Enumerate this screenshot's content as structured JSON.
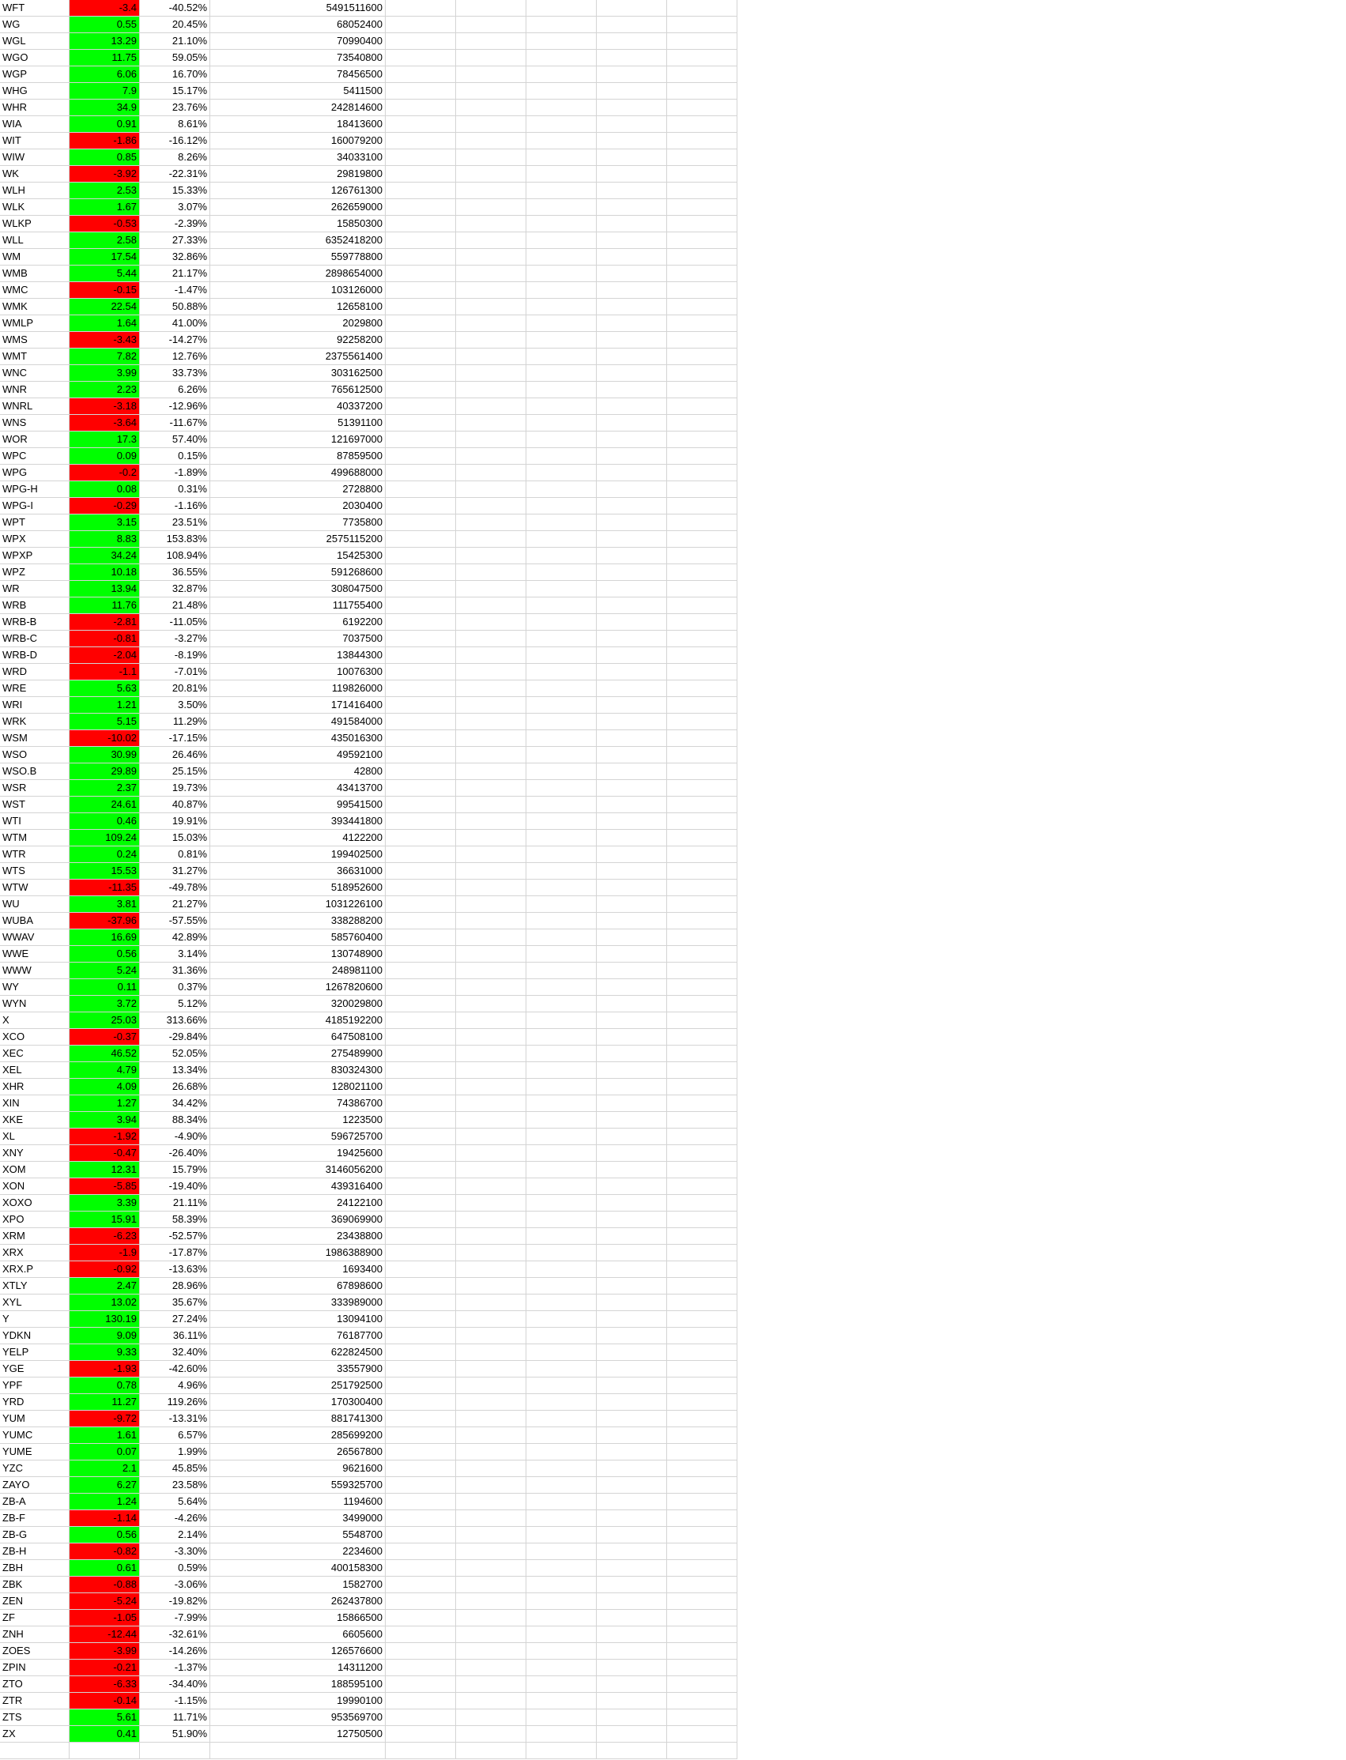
{
  "colors": {
    "positive_fill": "#00ff00",
    "negative_fill": "#ff0000",
    "gridline": "#d4d4d4"
  },
  "rows": [
    [
      "WFT",
      "-3.4",
      "-40.52%",
      "5491511600"
    ],
    [
      "WG",
      "0.55",
      "20.45%",
      "68052400"
    ],
    [
      "WGL",
      "13.29",
      "21.10%",
      "70990400"
    ],
    [
      "WGO",
      "11.75",
      "59.05%",
      "73540800"
    ],
    [
      "WGP",
      "6.06",
      "16.70%",
      "78456500"
    ],
    [
      "WHG",
      "7.9",
      "15.17%",
      "5411500"
    ],
    [
      "WHR",
      "34.9",
      "23.76%",
      "242814600"
    ],
    [
      "WIA",
      "0.91",
      "8.61%",
      "18413600"
    ],
    [
      "WIT",
      "-1.86",
      "-16.12%",
      "160079200"
    ],
    [
      "WIW",
      "0.85",
      "8.26%",
      "34033100"
    ],
    [
      "WK",
      "-3.92",
      "-22.31%",
      "29819800"
    ],
    [
      "WLH",
      "2.53",
      "15.33%",
      "126761300"
    ],
    [
      "WLK",
      "1.67",
      "3.07%",
      "262659000"
    ],
    [
      "WLKP",
      "-0.53",
      "-2.39%",
      "15850300"
    ],
    [
      "WLL",
      "2.58",
      "27.33%",
      "6352418200"
    ],
    [
      "WM",
      "17.54",
      "32.86%",
      "559778800"
    ],
    [
      "WMB",
      "5.44",
      "21.17%",
      "2898654000"
    ],
    [
      "WMC",
      "-0.15",
      "-1.47%",
      "103126000"
    ],
    [
      "WMK",
      "22.54",
      "50.88%",
      "12658100"
    ],
    [
      "WMLP",
      "1.64",
      "41.00%",
      "2029800"
    ],
    [
      "WMS",
      "-3.43",
      "-14.27%",
      "92258200"
    ],
    [
      "WMT",
      "7.82",
      "12.76%",
      "2375561400"
    ],
    [
      "WNC",
      "3.99",
      "33.73%",
      "303162500"
    ],
    [
      "WNR",
      "2.23",
      "6.26%",
      "765612500"
    ],
    [
      "WNRL",
      "-3.18",
      "-12.96%",
      "40337200"
    ],
    [
      "WNS",
      "-3.64",
      "-11.67%",
      "51391100"
    ],
    [
      "WOR",
      "17.3",
      "57.40%",
      "121697000"
    ],
    [
      "WPC",
      "0.09",
      "0.15%",
      "87859500"
    ],
    [
      "WPG",
      "-0.2",
      "-1.89%",
      "499688000"
    ],
    [
      "WPG-H",
      "0.08",
      "0.31%",
      "2728800"
    ],
    [
      "WPG-I",
      "-0.29",
      "-1.16%",
      "2030400"
    ],
    [
      "WPT",
      "3.15",
      "23.51%",
      "7735800"
    ],
    [
      "WPX",
      "8.83",
      "153.83%",
      "2575115200"
    ],
    [
      "WPXP",
      "34.24",
      "108.94%",
      "15425300"
    ],
    [
      "WPZ",
      "10.18",
      "36.55%",
      "591268600"
    ],
    [
      "WR",
      "13.94",
      "32.87%",
      "308047500"
    ],
    [
      "WRB",
      "11.76",
      "21.48%",
      "111755400"
    ],
    [
      "WRB-B",
      "-2.81",
      "-11.05%",
      "6192200"
    ],
    [
      "WRB-C",
      "-0.81",
      "-3.27%",
      "7037500"
    ],
    [
      "WRB-D",
      "-2.04",
      "-8.19%",
      "13844300"
    ],
    [
      "WRD",
      "-1.1",
      "-7.01%",
      "10076300"
    ],
    [
      "WRE",
      "5.63",
      "20.81%",
      "119826000"
    ],
    [
      "WRI",
      "1.21",
      "3.50%",
      "171416400"
    ],
    [
      "WRK",
      "5.15",
      "11.29%",
      "491584000"
    ],
    [
      "WSM",
      "-10.02",
      "-17.15%",
      "435016300"
    ],
    [
      "WSO",
      "30.99",
      "26.46%",
      "49592100"
    ],
    [
      "WSO.B",
      "29.89",
      "25.15%",
      "42800"
    ],
    [
      "WSR",
      "2.37",
      "19.73%",
      "43413700"
    ],
    [
      "WST",
      "24.61",
      "40.87%",
      "99541500"
    ],
    [
      "WTI",
      "0.46",
      "19.91%",
      "393441800"
    ],
    [
      "WTM",
      "109.24",
      "15.03%",
      "4122200"
    ],
    [
      "WTR",
      "0.24",
      "0.81%",
      "199402500"
    ],
    [
      "WTS",
      "15.53",
      "31.27%",
      "36631000"
    ],
    [
      "WTW",
      "-11.35",
      "-49.78%",
      "518952600"
    ],
    [
      "WU",
      "3.81",
      "21.27%",
      "1031226100"
    ],
    [
      "WUBA",
      "-37.96",
      "-57.55%",
      "338288200"
    ],
    [
      "WWAV",
      "16.69",
      "42.89%",
      "585760400"
    ],
    [
      "WWE",
      "0.56",
      "3.14%",
      "130748900"
    ],
    [
      "WWW",
      "5.24",
      "31.36%",
      "248981100"
    ],
    [
      "WY",
      "0.11",
      "0.37%",
      "1267820600"
    ],
    [
      "WYN",
      "3.72",
      "5.12%",
      "320029800"
    ],
    [
      "X",
      "25.03",
      "313.66%",
      "4185192200"
    ],
    [
      "XCO",
      "-0.37",
      "-29.84%",
      "647508100"
    ],
    [
      "XEC",
      "46.52",
      "52.05%",
      "275489900"
    ],
    [
      "XEL",
      "4.79",
      "13.34%",
      "830324300"
    ],
    [
      "XHR",
      "4.09",
      "26.68%",
      "128021100"
    ],
    [
      "XIN",
      "1.27",
      "34.42%",
      "74386700"
    ],
    [
      "XKE",
      "3.94",
      "88.34%",
      "1223500"
    ],
    [
      "XL",
      "-1.92",
      "-4.90%",
      "596725700"
    ],
    [
      "XNY",
      "-0.47",
      "-26.40%",
      "19425600"
    ],
    [
      "XOM",
      "12.31",
      "15.79%",
      "3146056200"
    ],
    [
      "XON",
      "-5.85",
      "-19.40%",
      "439316400"
    ],
    [
      "XOXO",
      "3.39",
      "21.11%",
      "24122100"
    ],
    [
      "XPO",
      "15.91",
      "58.39%",
      "369069900"
    ],
    [
      "XRM",
      "-6.23",
      "-52.57%",
      "23438800"
    ],
    [
      "XRX",
      "-1.9",
      "-17.87%",
      "1986388900"
    ],
    [
      "XRX.P",
      "-0.92",
      "-13.63%",
      "1693400"
    ],
    [
      "XTLY",
      "2.47",
      "28.96%",
      "67898600"
    ],
    [
      "XYL",
      "13.02",
      "35.67%",
      "333989000"
    ],
    [
      "Y",
      "130.19",
      "27.24%",
      "13094100"
    ],
    [
      "YDKN",
      "9.09",
      "36.11%",
      "76187700"
    ],
    [
      "YELP",
      "9.33",
      "32.40%",
      "622824500"
    ],
    [
      "YGE",
      "-1.93",
      "-42.60%",
      "33557900"
    ],
    [
      "YPF",
      "0.78",
      "4.96%",
      "251792500"
    ],
    [
      "YRD",
      "11.27",
      "119.26%",
      "170300400"
    ],
    [
      "YUM",
      "-9.72",
      "-13.31%",
      "881741300"
    ],
    [
      "YUMC",
      "1.61",
      "6.57%",
      "285699200"
    ],
    [
      "YUME",
      "0.07",
      "1.99%",
      "26567800"
    ],
    [
      "YZC",
      "2.1",
      "45.85%",
      "9621600"
    ],
    [
      "ZAYO",
      "6.27",
      "23.58%",
      "559325700"
    ],
    [
      "ZB-A",
      "1.24",
      "5.64%",
      "1194600"
    ],
    [
      "ZB-F",
      "-1.14",
      "-4.26%",
      "3499000"
    ],
    [
      "ZB-G",
      "0.56",
      "2.14%",
      "5548700"
    ],
    [
      "ZB-H",
      "-0.82",
      "-3.30%",
      "2234600"
    ],
    [
      "ZBH",
      "0.61",
      "0.59%",
      "400158300"
    ],
    [
      "ZBK",
      "-0.88",
      "-3.06%",
      "1582700"
    ],
    [
      "ZEN",
      "-5.24",
      "-19.82%",
      "262437800"
    ],
    [
      "ZF",
      "-1.05",
      "-7.99%",
      "15866500"
    ],
    [
      "ZNH",
      "-12.44",
      "-32.61%",
      "6605600"
    ],
    [
      "ZOES",
      "-3.99",
      "-14.26%",
      "126576600"
    ],
    [
      "ZPIN",
      "-0.21",
      "-1.37%",
      "14311200"
    ],
    [
      "ZTO",
      "-6.33",
      "-34.40%",
      "188595100"
    ],
    [
      "ZTR",
      "-0.14",
      "-1.15%",
      "19990100"
    ],
    [
      "ZTS",
      "5.61",
      "11.71%",
      "953569700"
    ],
    [
      "ZX",
      "0.41",
      "51.90%",
      "12750500"
    ],
    [
      "",
      "",
      "",
      ""
    ]
  ]
}
